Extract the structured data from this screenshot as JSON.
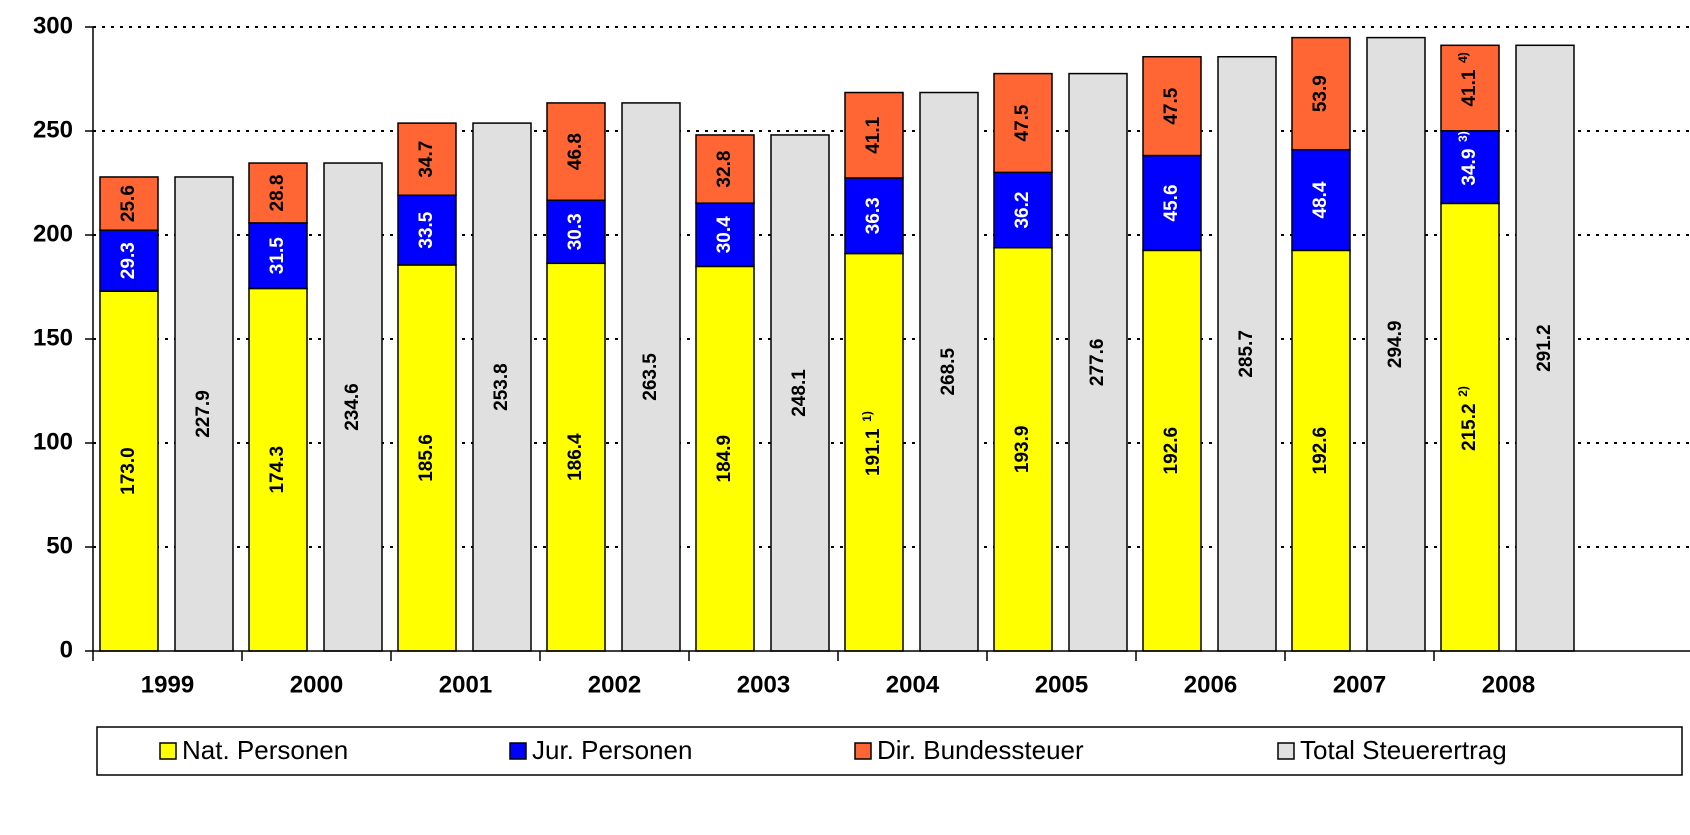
{
  "chart_data": {
    "type": "bar",
    "categories": [
      "1999",
      "2000",
      "2001",
      "2002",
      "2003",
      "2004",
      "2005",
      "2006",
      "2007",
      "2008"
    ],
    "series": [
      {
        "name": "Nat. Personen",
        "color": "#ffff00",
        "stack": 0,
        "values": [
          173.0,
          174.3,
          185.6,
          186.4,
          184.9,
          191.1,
          193.9,
          192.6,
          192.6,
          215.2
        ],
        "value_labels": [
          "173.0",
          "174.3",
          "185.6",
          "186.4",
          "184.9",
          "191.1",
          "193.9",
          "192.6",
          "192.6",
          "215.2"
        ],
        "footnotes": [
          null,
          null,
          null,
          null,
          null,
          "1)",
          null,
          null,
          null,
          "2)"
        ]
      },
      {
        "name": "Jur. Personen",
        "color": "#0000ff",
        "stack": 0,
        "values": [
          29.3,
          31.5,
          33.5,
          30.3,
          30.4,
          36.3,
          36.2,
          45.6,
          48.4,
          34.9
        ],
        "value_labels": [
          "29.3",
          "31.5",
          "33.5",
          "30.3",
          "30.4",
          "36.3",
          "36.2",
          "45.6",
          "48.4",
          "34.9"
        ],
        "footnotes": [
          null,
          null,
          null,
          null,
          null,
          null,
          null,
          null,
          null,
          "3)"
        ]
      },
      {
        "name": "Dir. Bundessteuer",
        "color": "#ff6633",
        "stack": 0,
        "values": [
          25.6,
          28.8,
          34.7,
          46.8,
          32.8,
          41.1,
          47.5,
          47.5,
          53.9,
          41.1
        ],
        "value_labels": [
          "25.6",
          "28.8",
          "34.7",
          "46.8",
          "32.8",
          "41.1",
          "47.5",
          "47.5",
          "53.9",
          "41.1"
        ],
        "footnotes": [
          null,
          null,
          null,
          null,
          null,
          null,
          null,
          null,
          null,
          "4)"
        ]
      },
      {
        "name": "Total Steuerertrag",
        "color": "#e0e0e0",
        "stack": 1,
        "values": [
          227.9,
          234.6,
          253.8,
          263.5,
          248.1,
          268.5,
          277.6,
          285.7,
          294.9,
          291.2
        ],
        "value_labels": [
          "227.9",
          "234.6",
          "253.8",
          "263.5",
          "248.1",
          "268.5",
          "277.6",
          "285.7",
          "294.9",
          "291.2"
        ],
        "footnotes": [
          null,
          null,
          null,
          null,
          null,
          null,
          null,
          null,
          null,
          null
        ]
      }
    ],
    "ylim": [
      0,
      300
    ],
    "yticks": [
      0,
      50,
      100,
      150,
      200,
      250,
      300
    ],
    "grid": true
  }
}
